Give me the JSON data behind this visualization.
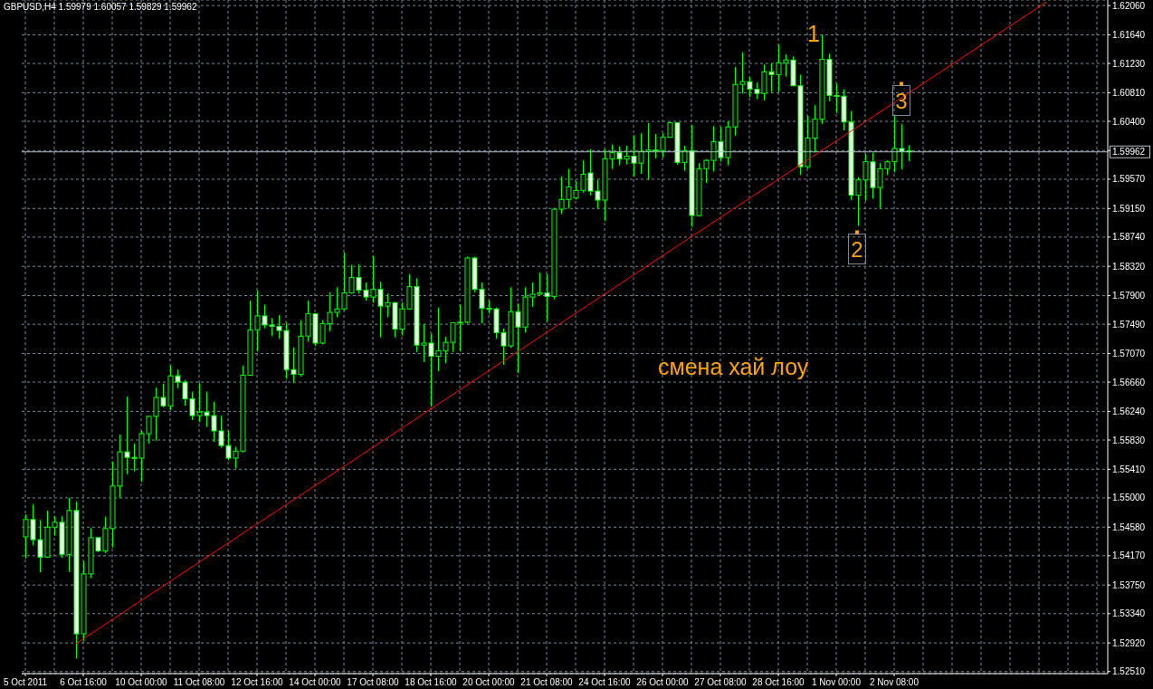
{
  "chart_data": {
    "type": "candlestick",
    "title": "GBPUSD,H4 1.59979 1.60057 1.59829 1.59962",
    "categories": [
      "5 Oct 2011",
      null,
      null,
      null,
      null,
      null,
      null,
      null,
      "6 Oct 16:00",
      null,
      null,
      null,
      null,
      null,
      null,
      null,
      "10 Oct 00:00",
      null,
      null,
      null,
      null,
      null,
      null,
      null,
      "11 Oct 08:00",
      null,
      null,
      null,
      null,
      null,
      null,
      null,
      "12 Oct 16:00",
      null,
      null,
      null,
      null,
      null,
      null,
      null,
      "14 Oct 00:00",
      null,
      null,
      null,
      null,
      null,
      null,
      null,
      "17 Oct 08:00",
      null,
      null,
      null,
      null,
      null,
      null,
      null,
      "18 Oct 16:00",
      null,
      null,
      null,
      null,
      null,
      null,
      null,
      "20 Oct 00:00",
      null,
      null,
      null,
      null,
      null,
      null,
      null,
      "21 Oct 08:00",
      null,
      null,
      null,
      null,
      null,
      null,
      null,
      "24 Oct 16:00",
      null,
      null,
      null,
      null,
      null,
      null,
      null,
      "26 Oct 00:00",
      null,
      null,
      null,
      null,
      null,
      null,
      null,
      "27 Oct 08:00",
      null,
      null,
      null,
      null,
      null,
      null,
      null,
      "28 Oct 16:00",
      null,
      null,
      null,
      null,
      null,
      null,
      null,
      "1 Nov 00:00",
      null,
      null,
      null,
      null,
      null,
      null,
      null,
      "2 Nov 08:00",
      null,
      null,
      null,
      null,
      null,
      null,
      null,
      null,
      null,
      null,
      null,
      null,
      null,
      null,
      null,
      null,
      null,
      null,
      null,
      null,
      null,
      null,
      null,
      null,
      null,
      null,
      null,
      null,
      null
    ],
    "ohlc": [
      [
        1.5444,
        1.5476,
        1.5413,
        1.5469
      ],
      [
        1.5469,
        1.5491,
        1.5432,
        1.544
      ],
      [
        1.544,
        1.5468,
        1.5393,
        1.5415
      ],
      [
        1.5415,
        1.5482,
        1.5414,
        1.5458
      ],
      [
        1.5458,
        1.5474,
        1.5446,
        1.5465
      ],
      [
        1.5465,
        1.5474,
        1.5414,
        1.5419
      ],
      [
        1.5419,
        1.55,
        1.5394,
        1.5482
      ],
      [
        1.5482,
        1.5495,
        1.527,
        1.5305
      ],
      [
        1.5305,
        1.5409,
        1.5295,
        1.5391
      ],
      [
        1.5391,
        1.5457,
        1.5385,
        1.5443
      ],
      [
        1.5443,
        1.5443,
        1.5422,
        1.5424
      ],
      [
        1.5424,
        1.5473,
        1.5421,
        1.5456
      ],
      [
        1.5456,
        1.5552,
        1.5429,
        1.5517
      ],
      [
        1.5517,
        1.5591,
        1.55,
        1.5566
      ],
      [
        1.5566,
        1.5645,
        1.5534,
        1.5558
      ],
      [
        1.5558,
        1.5578,
        1.5538,
        1.5557
      ],
      [
        1.5557,
        1.5596,
        1.5523,
        1.5592
      ],
      [
        1.5592,
        1.5618,
        1.5578,
        1.5617
      ],
      [
        1.5617,
        1.5658,
        1.5582,
        1.5644
      ],
      [
        1.5644,
        1.5664,
        1.563,
        1.5632
      ],
      [
        1.5632,
        1.569,
        1.5626,
        1.5675
      ],
      [
        1.5675,
        1.5684,
        1.5657,
        1.5666
      ],
      [
        1.5666,
        1.5669,
        1.5632,
        1.5642
      ],
      [
        1.5642,
        1.5652,
        1.5612,
        1.5618
      ],
      [
        1.5618,
        1.5665,
        1.5609,
        1.5623
      ],
      [
        1.5623,
        1.5652,
        1.5602,
        1.5618
      ],
      [
        1.5618,
        1.5638,
        1.558,
        1.5596
      ],
      [
        1.5596,
        1.5618,
        1.5572,
        1.5575
      ],
      [
        1.5575,
        1.5596,
        1.5554,
        1.5557
      ],
      [
        1.5557,
        1.5573,
        1.5542,
        1.5567
      ],
      [
        1.5567,
        1.569,
        1.5565,
        1.5676
      ],
      [
        1.5676,
        1.5783,
        1.5675,
        1.5741
      ],
      [
        1.5741,
        1.5797,
        1.571,
        1.5761
      ],
      [
        1.5761,
        1.5777,
        1.5743,
        1.5748
      ],
      [
        1.5748,
        1.5758,
        1.5732,
        1.5746
      ],
      [
        1.5746,
        1.5762,
        1.5728,
        1.574
      ],
      [
        1.574,
        1.5751,
        1.5671,
        1.5684
      ],
      [
        1.5684,
        1.5716,
        1.5665,
        1.5677
      ],
      [
        1.5677,
        1.5755,
        1.5674,
        1.5732
      ],
      [
        1.5732,
        1.5783,
        1.5724,
        1.5764
      ],
      [
        1.5764,
        1.5765,
        1.5718,
        1.5722
      ],
      [
        1.5722,
        1.5755,
        1.572,
        1.575
      ],
      [
        1.575,
        1.5795,
        1.5739,
        1.5766
      ],
      [
        1.5766,
        1.5802,
        1.5759,
        1.5771
      ],
      [
        1.5771,
        1.5852,
        1.5769,
        1.5794
      ],
      [
        1.5794,
        1.5834,
        1.5793,
        1.5816
      ],
      [
        1.5816,
        1.5835,
        1.5793,
        1.5798
      ],
      [
        1.5798,
        1.5809,
        1.5783,
        1.5788
      ],
      [
        1.5788,
        1.5847,
        1.578,
        1.5799
      ],
      [
        1.5799,
        1.581,
        1.573,
        1.5775
      ],
      [
        1.5775,
        1.5793,
        1.5759,
        1.578
      ],
      [
        1.578,
        1.5781,
        1.573,
        1.5742
      ],
      [
        1.5742,
        1.578,
        1.5733,
        1.5771
      ],
      [
        1.5771,
        1.5821,
        1.577,
        1.5803
      ],
      [
        1.5803,
        1.5815,
        1.5709,
        1.5719
      ],
      [
        1.5719,
        1.5749,
        1.5695,
        1.5722
      ],
      [
        1.5722,
        1.5735,
        1.5631,
        1.5703
      ],
      [
        1.5703,
        1.5773,
        1.5682,
        1.5711
      ],
      [
        1.5711,
        1.5731,
        1.5693,
        1.5723
      ],
      [
        1.5723,
        1.5752,
        1.5709,
        1.5751
      ],
      [
        1.5751,
        1.5777,
        1.571,
        1.5752
      ],
      [
        1.5752,
        1.5846,
        1.575,
        1.5844
      ],
      [
        1.5844,
        1.5846,
        1.5795,
        1.5799
      ],
      [
        1.5799,
        1.5809,
        1.575,
        1.5772
      ],
      [
        1.5772,
        1.5783,
        1.5764,
        1.5771
      ],
      [
        1.5771,
        1.5773,
        1.5728,
        1.5737
      ],
      [
        1.5737,
        1.5743,
        1.5691,
        1.5718
      ],
      [
        1.5718,
        1.5802,
        1.5715,
        1.5767
      ],
      [
        1.5767,
        1.5779,
        1.5679,
        1.5745
      ],
      [
        1.5745,
        1.5802,
        1.5737,
        1.5788
      ],
      [
        1.5788,
        1.5809,
        1.5774,
        1.5792
      ],
      [
        1.5792,
        1.5823,
        1.5791,
        1.5794
      ],
      [
        1.5794,
        1.5821,
        1.5753,
        1.5789
      ],
      [
        1.5789,
        1.5916,
        1.5785,
        1.5914
      ],
      [
        1.5914,
        1.5961,
        1.5907,
        1.5928
      ],
      [
        1.5928,
        1.5972,
        1.5915,
        1.5946
      ],
      [
        1.593,
        1.5954,
        1.5928,
        1.5941
      ],
      [
        1.5941,
        1.5984,
        1.5938,
        1.5964
      ],
      [
        1.5966,
        1.6,
        1.5934,
        1.594
      ],
      [
        1.594,
        1.5956,
        1.5915,
        1.5927
      ],
      [
        1.5927,
        1.6,
        1.5897,
        1.5986
      ],
      [
        1.5986,
        1.6007,
        1.5972,
        1.5995
      ],
      [
        1.5995,
        1.6004,
        1.5977,
        1.5986
      ],
      [
        1.5986,
        1.6005,
        1.5978,
        1.599
      ],
      [
        1.599,
        1.602,
        1.5961,
        1.598
      ],
      [
        1.598,
        1.6023,
        1.5965,
        1.5997
      ],
      [
        1.5997,
        1.6037,
        1.5956,
        1.5999
      ],
      [
        1.5999,
        1.6022,
        1.5987,
        1.5998
      ],
      [
        1.5998,
        1.6023,
        1.5988,
        1.6017
      ],
      [
        1.6017,
        1.6039,
        1.6017,
        1.6038
      ],
      [
        1.6038,
        1.6039,
        1.5978,
        1.5981
      ],
      [
        1.5981,
        1.6005,
        1.5969,
        1.5998
      ],
      [
        1.5998,
        1.6035,
        1.5889,
        1.5905
      ],
      [
        1.5905,
        1.598,
        1.5904,
        1.5972
      ],
      [
        1.5972,
        1.5986,
        1.5952,
        1.5984
      ],
      [
        1.5984,
        1.6033,
        1.5968,
        1.6011
      ],
      [
        1.6011,
        1.6032,
        1.5982,
        1.5988
      ],
      [
        1.5988,
        1.604,
        1.5977,
        1.6032
      ],
      [
        1.6032,
        1.6118,
        1.6019,
        1.6093
      ],
      [
        1.6093,
        1.6139,
        1.608,
        1.6097
      ],
      [
        1.6097,
        1.6103,
        1.6075,
        1.6086
      ],
      [
        1.6086,
        1.6096,
        1.6072,
        1.608
      ],
      [
        1.608,
        1.6122,
        1.607,
        1.6111
      ],
      [
        1.6111,
        1.6123,
        1.6082,
        1.6107
      ],
      [
        1.6107,
        1.615,
        1.6082,
        1.6124
      ],
      [
        1.6124,
        1.6136,
        1.6104,
        1.6128
      ],
      [
        1.6128,
        1.6133,
        1.609,
        1.6091
      ],
      [
        1.6091,
        1.6107,
        1.5963,
        1.5975
      ],
      [
        1.5975,
        1.6048,
        1.5972,
        1.6016
      ],
      [
        1.6016,
        1.6063,
        1.5995,
        1.6043
      ],
      [
        1.6043,
        1.6164,
        1.6036,
        1.6129
      ],
      [
        1.6129,
        1.6137,
        1.6069,
        1.6077
      ],
      [
        1.6077,
        1.6094,
        1.6052,
        1.6076
      ],
      [
        1.6076,
        1.6086,
        1.6027,
        1.6039
      ],
      [
        1.6039,
        1.6055,
        1.5927,
        1.5934
      ],
      [
        1.5934,
        1.596,
        1.589,
        1.5956
      ],
      [
        1.5956,
        1.5993,
        1.5926,
        1.5982
      ],
      [
        1.5982,
        1.5995,
        1.5929,
        1.5945
      ],
      [
        1.5945,
        1.598,
        1.5915,
        1.5972
      ],
      [
        1.5972,
        1.5984,
        1.5963,
        1.5982
      ],
      [
        1.5982,
        1.6047,
        1.5967,
        1.6001
      ],
      [
        1.6001,
        1.6036,
        1.5971,
        1.5997
      ],
      [
        1.59979,
        1.60057,
        1.59829,
        1.59962
      ],
      null,
      null,
      null,
      null,
      null,
      null,
      null,
      null,
      null,
      null,
      null,
      null,
      null,
      null,
      null,
      null,
      null,
      null,
      null,
      null,
      null,
      null,
      null,
      null,
      null,
      null,
      null
    ],
    "color": "#00ff00",
    "colors": [
      "#00ff00",
      "#ffffff",
      "#ffffff",
      "#00ff00",
      "#00ff00",
      "#ffffff",
      "#00ff00",
      "#ffffff",
      "#00ff00",
      "#00ff00",
      "#ffffff",
      "#00ff00",
      "#00ff00",
      "#00ff00",
      "#ffffff",
      "#ffffff",
      "#00ff00",
      "#00ff00",
      "#00ff00",
      "#ffffff",
      "#00ff00",
      "#ffffff",
      "#ffffff",
      "#ffffff",
      "#00ff00",
      "#ffffff",
      "#ffffff",
      "#ffffff",
      "#ffffff",
      "#00ff00",
      "#00ff00",
      "#00ff00",
      "#00ff00",
      "#ffffff",
      "#ffffff",
      "#ffffff",
      "#ffffff",
      "#ffffff",
      "#00ff00",
      "#00ff00",
      "#ffffff",
      "#00ff00",
      "#00ff00",
      "#00ff00",
      "#00ff00",
      "#00ff00",
      "#ffffff",
      "#ffffff",
      "#00ff00",
      "#ffffff",
      "#00ff00",
      "#ffffff",
      "#00ff00",
      "#00ff00",
      "#ffffff",
      "#00ff00",
      "#ffffff",
      "#00ff00",
      "#00ff00",
      "#00ff00",
      "#00ff00",
      "#00ff00",
      "#ffffff",
      "#ffffff",
      "#ffffff",
      "#ffffff",
      "#ffffff",
      "#00ff00",
      "#ffffff",
      "#00ff00",
      "#00ff00",
      "#00ff00",
      "#ffffff",
      "#00ff00",
      "#00ff00",
      "#00ff00",
      "#00ff00",
      "#00ff00",
      "#ffffff",
      "#ffffff",
      "#00ff00",
      "#00ff00",
      "#ffffff",
      "#00ff00",
      "#ffffff",
      "#00ff00",
      "#00ff00",
      "#ffffff",
      "#00ff00",
      "#00ff00",
      "#ffffff",
      "#00ff00",
      "#ffffff",
      "#00ff00",
      "#00ff00",
      "#00ff00",
      "#ffffff",
      "#00ff00",
      "#00ff00",
      "#00ff00",
      "#ffffff",
      "#ffffff",
      "#00ff00",
      "#ffffff",
      "#00ff00",
      "#00ff00",
      "#ffffff",
      "#ffffff",
      "#00ff00",
      "#00ff00",
      "#00ff00",
      "#ffffff",
      "#ffffff",
      "#ffffff",
      "#ffffff",
      "#00ff00",
      "#00ff00",
      "#ffffff",
      "#00ff00",
      "#00ff00",
      "#00ff00",
      "#ffffff",
      "#ffffff",
      null,
      null,
      null,
      null,
      null,
      null,
      null,
      null,
      null,
      null,
      null,
      null,
      null,
      null,
      null,
      null,
      null,
      null,
      null,
      null,
      null,
      null,
      null,
      null,
      null,
      null,
      null
    ],
    "series": [
      {
        "type": "line",
        "color": "#ff0000",
        "marker": "none",
        "line_style": "solid",
        "values": [
          null,
          null,
          null,
          null,
          null,
          null,
          null,
          1.5291,
          null,
          null,
          null,
          null,
          null,
          null,
          null,
          null,
          null,
          null,
          null,
          null,
          null,
          null,
          null,
          null,
          null,
          null,
          null,
          null,
          null,
          null,
          null,
          null,
          null,
          null,
          null,
          null,
          null,
          null,
          null,
          null,
          null,
          null,
          null,
          null,
          null,
          null,
          null,
          null,
          null,
          null,
          null,
          null,
          null,
          null,
          null,
          null,
          null,
          null,
          null,
          null,
          null,
          null,
          null,
          null,
          null,
          null,
          null,
          null,
          null,
          null,
          null,
          null,
          null,
          null,
          null,
          null,
          null,
          null,
          null,
          null,
          null,
          null,
          null,
          null,
          null,
          null,
          null,
          null,
          null,
          null,
          null,
          null,
          null,
          null,
          null,
          null,
          null,
          null,
          null,
          null,
          null,
          null,
          null,
          null,
          null,
          null,
          null,
          null,
          null,
          null,
          null,
          null,
          null,
          null,
          null,
          null,
          null,
          null,
          null,
          null,
          null,
          null,
          null,
          null,
          null,
          null,
          null,
          null,
          null,
          null,
          null,
          null,
          null,
          null,
          null,
          null,
          null,
          null,
          null,
          null,
          null,
          1.6211,
          null,
          null,
          null,
          null,
          null,
          null,
          null,
          null
        ]
      }
    ],
    "ylim": [
      1.5248,
      1.6214
    ],
    "yticks": [
      {
        "value": 1.6206,
        "label": "1.62060"
      },
      {
        "value": 1.6164,
        "label": "1.61640"
      },
      {
        "value": 1.6123,
        "label": "1.61230"
      },
      {
        "value": 1.6081,
        "label": "1.60810"
      },
      {
        "value": 1.604,
        "label": "1.60400"
      },
      {
        "value": 1.5998,
        "label": null
      },
      {
        "value": 1.5957,
        "label": "1.59570"
      },
      {
        "value": 1.5915,
        "label": "1.59150"
      },
      {
        "value": 1.5874,
        "label": "1.58740"
      },
      {
        "value": 1.5832,
        "label": "1.58320"
      },
      {
        "value": 1.579,
        "label": "1.57900"
      },
      {
        "value": 1.5749,
        "label": "1.57490"
      },
      {
        "value": 1.5707,
        "label": "1.57070"
      },
      {
        "value": 1.5666,
        "label": "1.56660"
      },
      {
        "value": 1.5624,
        "label": "1.56240"
      },
      {
        "value": 1.5583,
        "label": "1.55830"
      },
      {
        "value": 1.5541,
        "label": "1.55410"
      },
      {
        "value": 1.55,
        "label": "1.55000"
      },
      {
        "value": 1.5458,
        "label": "1.54580"
      },
      {
        "value": 1.5417,
        "label": "1.54170"
      },
      {
        "value": 1.5375,
        "label": "1.53750"
      },
      {
        "value": 1.5334,
        "label": "1.53340"
      },
      {
        "value": 1.5292,
        "label": "1.52920"
      },
      {
        "value": 1.5251,
        "label": "1.52510"
      }
    ],
    "grid": true,
    "ref_lines": [
      {
        "axis": "y",
        "value": 1.59962,
        "label": "1.59962",
        "color": "#b4c0cc"
      }
    ],
    "annotations": [
      "1",
      "2",
      "3",
      "смена хай лоу"
    ]
  }
}
